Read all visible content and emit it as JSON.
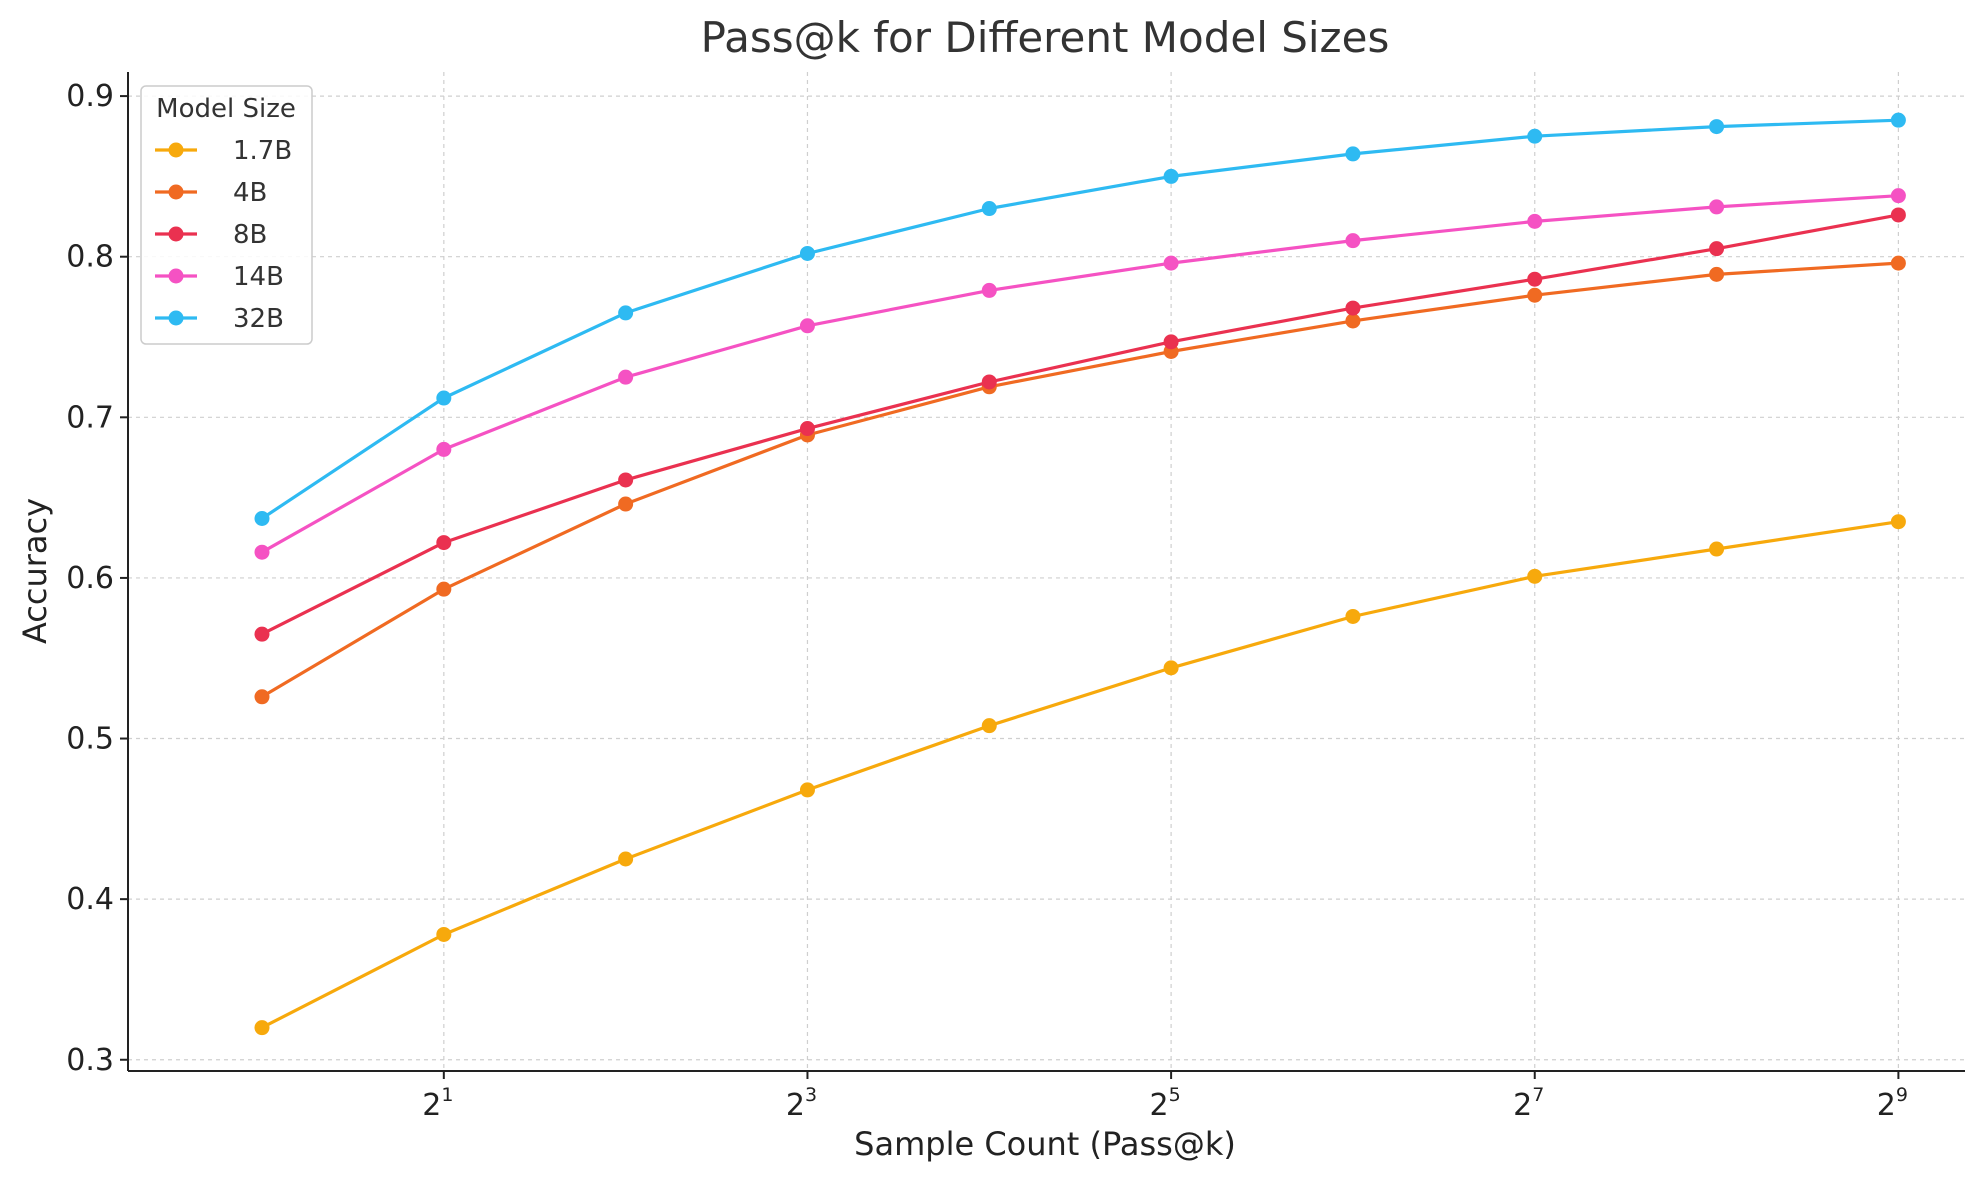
{
  "chart_data": {
    "type": "line",
    "title": "Pass@k for Different Model Sizes",
    "xlabel": "Sample Count (Pass@k)",
    "ylabel": "Accuracy",
    "x_scale": "log2",
    "x": [
      1,
      2,
      4,
      8,
      16,
      32,
      64,
      128,
      256,
      512
    ],
    "xticks": [
      {
        "value": 2,
        "base": "2",
        "exp": "1"
      },
      {
        "value": 8,
        "base": "2",
        "exp": "3"
      },
      {
        "value": 32,
        "base": "2",
        "exp": "5"
      },
      {
        "value": 128,
        "base": "2",
        "exp": "7"
      },
      {
        "value": 512,
        "base": "2",
        "exp": "9"
      }
    ],
    "yticks": [
      "0.3",
      "0.4",
      "0.5",
      "0.6",
      "0.7",
      "0.8",
      "0.9"
    ],
    "xlim": [
      0.6,
      660
    ],
    "ylim": [
      0.293,
      0.915
    ],
    "grid": true,
    "legend": {
      "title": "Model Size",
      "position": "top-left"
    },
    "series": [
      {
        "name": "1.7B",
        "color": "#f7a90c",
        "values": [
          0.32,
          0.378,
          0.425,
          0.468,
          0.508,
          0.544,
          0.576,
          0.601,
          0.618,
          0.635
        ]
      },
      {
        "name": "4B",
        "color": "#f06a22",
        "values": [
          0.526,
          0.593,
          0.646,
          0.689,
          0.719,
          0.741,
          0.76,
          0.776,
          0.789,
          0.796
        ]
      },
      {
        "name": "8B",
        "color": "#ea3150",
        "values": [
          0.565,
          0.622,
          0.661,
          0.693,
          0.722,
          0.747,
          0.768,
          0.786,
          0.805,
          0.826
        ]
      },
      {
        "name": "14B",
        "color": "#f552c3",
        "values": [
          0.616,
          0.68,
          0.725,
          0.757,
          0.779,
          0.796,
          0.81,
          0.822,
          0.831,
          0.838
        ]
      },
      {
        "name": "32B",
        "color": "#2ebaf2",
        "values": [
          0.637,
          0.712,
          0.765,
          0.802,
          0.83,
          0.85,
          0.864,
          0.875,
          0.881,
          0.885
        ]
      }
    ]
  }
}
